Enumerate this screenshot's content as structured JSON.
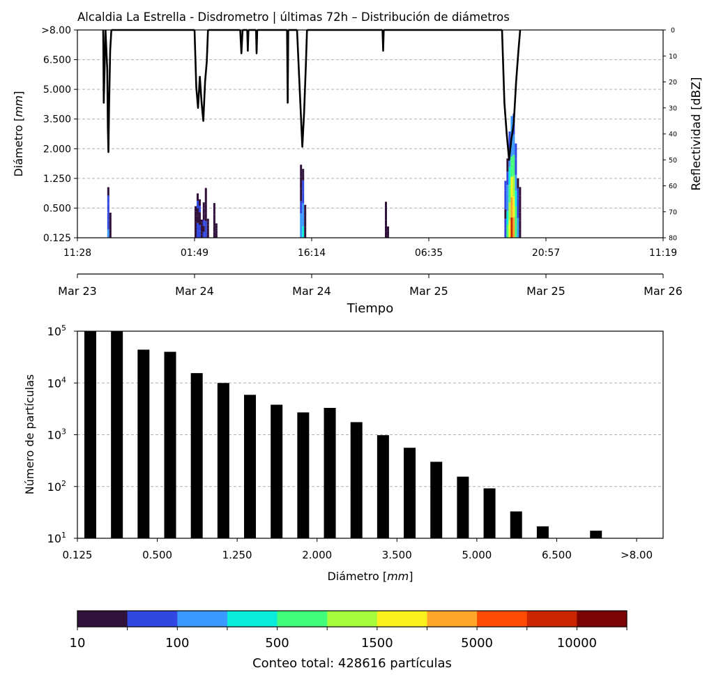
{
  "chart_data": [
    {
      "type": "heatmap",
      "title": "Alcaldia La Estrella - Disdrometro | últimas 72h – Distribución de diámetros",
      "ylabel_prefix": "Diámetro [",
      "ylabel_unit": "mm",
      "ylabel_suffix": "]",
      "y2label": "Reflectividad [dBZ]",
      "xlabel": "Tiempo",
      "y_ticks": [
        "0.125",
        "0.500",
        "1.250",
        "2.000",
        "3.500",
        "5.000",
        "6.500",
        ">8.00"
      ],
      "y2_ticks": [
        "0",
        "10",
        "20",
        "30",
        "40",
        "50",
        "60",
        "70",
        "80"
      ],
      "y2lim": [
        0,
        80
      ],
      "y2_inverted": true,
      "x_ticks_time": [
        "11:28",
        "01:49",
        "16:14",
        "06:35",
        "20:57",
        "11:19"
      ],
      "x_ticks_date": [
        "Mar 23",
        "Mar 24",
        "Mar 24",
        "Mar 25",
        "Mar 25",
        "Mar 26"
      ],
      "grid": "horizontal-dashed",
      "rain_events": [
        {
          "start": 0.051,
          "end": 0.056,
          "max_class": 0.3,
          "peak": 3
        },
        {
          "start": 0.2,
          "end": 0.212,
          "max_class": 0.28,
          "peak": 1
        },
        {
          "start": 0.214,
          "end": 0.222,
          "max_class": 0.32,
          "peak": 1
        },
        {
          "start": 0.232,
          "end": 0.236,
          "max_class": 0.18,
          "peak": 0
        },
        {
          "start": 0.38,
          "end": 0.388,
          "max_class": 0.48,
          "peak": 4
        },
        {
          "start": 0.525,
          "end": 0.529,
          "max_class": 0.18,
          "peak": 0
        },
        {
          "start": 0.729,
          "end": 0.755,
          "max_class": 0.72,
          "peak": 9
        }
      ],
      "reflectivity_dbz": [
        {
          "t": 0.044,
          "v": 0
        },
        {
          "t": 0.045,
          "v": 28
        },
        {
          "t": 0.048,
          "v": 0
        },
        {
          "t": 0.051,
          "v": 15
        },
        {
          "t": 0.052,
          "v": 38
        },
        {
          "t": 0.053,
          "v": 47
        },
        {
          "t": 0.054,
          "v": 30
        },
        {
          "t": 0.056,
          "v": 8
        },
        {
          "t": 0.058,
          "v": 0
        },
        {
          "t": 0.2,
          "v": 0
        },
        {
          "t": 0.203,
          "v": 22
        },
        {
          "t": 0.206,
          "v": 30
        },
        {
          "t": 0.209,
          "v": 18
        },
        {
          "t": 0.212,
          "v": 28
        },
        {
          "t": 0.215,
          "v": 35
        },
        {
          "t": 0.218,
          "v": 20
        },
        {
          "t": 0.221,
          "v": 12
        },
        {
          "t": 0.223,
          "v": 0
        },
        {
          "t": 0.278,
          "v": 0
        },
        {
          "t": 0.28,
          "v": 9
        },
        {
          "t": 0.282,
          "v": 0
        },
        {
          "t": 0.29,
          "v": 0
        },
        {
          "t": 0.291,
          "v": 8
        },
        {
          "t": 0.292,
          "v": 0
        },
        {
          "t": 0.305,
          "v": 0
        },
        {
          "t": 0.306,
          "v": 9
        },
        {
          "t": 0.307,
          "v": 0
        },
        {
          "t": 0.358,
          "v": 0
        },
        {
          "t": 0.359,
          "v": 28
        },
        {
          "t": 0.36,
          "v": 0
        },
        {
          "t": 0.375,
          "v": 0
        },
        {
          "t": 0.38,
          "v": 25
        },
        {
          "t": 0.384,
          "v": 45
        },
        {
          "t": 0.387,
          "v": 32
        },
        {
          "t": 0.39,
          "v": 14
        },
        {
          "t": 0.392,
          "v": 0
        },
        {
          "t": 0.521,
          "v": 0
        },
        {
          "t": 0.522,
          "v": 8
        },
        {
          "t": 0.523,
          "v": 0
        },
        {
          "t": 0.725,
          "v": 0
        },
        {
          "t": 0.729,
          "v": 28
        },
        {
          "t": 0.733,
          "v": 40
        },
        {
          "t": 0.737,
          "v": 50
        },
        {
          "t": 0.741,
          "v": 42
        },
        {
          "t": 0.745,
          "v": 36
        },
        {
          "t": 0.749,
          "v": 20
        },
        {
          "t": 0.753,
          "v": 8
        },
        {
          "t": 0.756,
          "v": 0
        }
      ]
    },
    {
      "type": "bar",
      "xlabel_prefix": "Diámetro [",
      "xlabel_unit": "mm",
      "xlabel_suffix": "]",
      "ylabel": "Número de partículas",
      "yscale": "log",
      "ylim": [
        10,
        100000
      ],
      "y_ticks": [
        "10",
        "10",
        "10",
        "10",
        "10"
      ],
      "y_ticks_exp": [
        "1",
        "2",
        "3",
        "4",
        "5"
      ],
      "x_ticks": [
        "0.125",
        "0.500",
        "1.250",
        "2.000",
        "3.500",
        "5.000",
        "6.500",
        ">8.00"
      ],
      "grid": "horizontal-dashed",
      "bar_color": "#000000",
      "values": [
        100000,
        100000,
        44000,
        40000,
        15500,
        10000,
        5900,
        3800,
        2700,
        3300,
        1750,
        980,
        560,
        300,
        155,
        92,
        33,
        17,
        0,
        14,
        0
      ]
    }
  ],
  "colorbar": {
    "tick_labels": [
      "10",
      "100",
      "500",
      "1500",
      "5000",
      "10000"
    ],
    "colors": [
      "#30123b",
      "#3147e0",
      "#3a99fe",
      "#0bedda",
      "#43fe7d",
      "#a4fc3c",
      "#f9f11c",
      "#fea52a",
      "#fe4c05",
      "#cb2602",
      "#7a0403"
    ],
    "label": "Conteo total: 428616 partículas"
  }
}
